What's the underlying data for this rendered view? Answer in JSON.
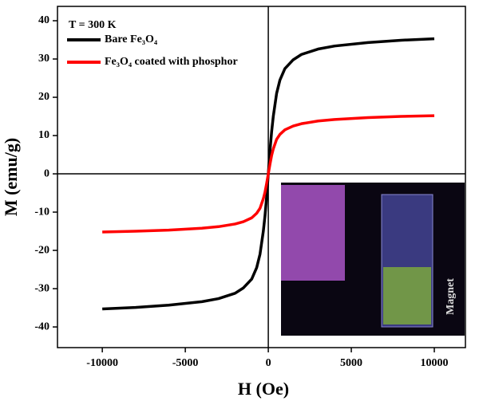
{
  "chart_data": {
    "type": "line",
    "x_label": "H (Oe)",
    "y_label": "M (emu/g)",
    "annotation": "T = 300 K",
    "inset_label": "Magnet",
    "x": [
      -10000,
      -8000,
      -6000,
      -4000,
      -3000,
      -2000,
      -1500,
      -1000,
      -700,
      -500,
      -300,
      -200,
      -100,
      0,
      100,
      200,
      300,
      500,
      700,
      1000,
      1500,
      2000,
      3000,
      4000,
      6000,
      8000,
      10000
    ],
    "series": [
      {
        "name": "Bare Fe₃O₄",
        "color": "#000000",
        "values": [
          -35.3,
          -34.9,
          -34.3,
          -33.4,
          -32.6,
          -31.2,
          -29.8,
          -27.5,
          -24.5,
          -21,
          -15,
          -11,
          -6,
          0,
          6,
          11,
          15,
          21,
          24.5,
          27.5,
          29.8,
          31.2,
          32.6,
          33.4,
          34.3,
          34.9,
          35.3
        ]
      },
      {
        "name": "Fe₃O₄ coated with phosphor",
        "color": "#ff0000",
        "values": [
          -15.2,
          -15.0,
          -14.7,
          -14.2,
          -13.8,
          -13.1,
          -12.5,
          -11.5,
          -10.3,
          -9,
          -6.5,
          -4.8,
          -2.5,
          0,
          2.5,
          4.8,
          6.5,
          9,
          10.3,
          11.5,
          12.5,
          13.1,
          13.8,
          14.2,
          14.7,
          15.0,
          15.2
        ]
      }
    ],
    "xlim": [
      -12700,
      11875
    ],
    "ylim": [
      -45.4,
      43.75
    ],
    "xticks": [
      -10000,
      -5000,
      0,
      5000,
      10000
    ],
    "yticks": [
      -40,
      -30,
      -20,
      -10,
      0,
      10,
      20,
      30,
      40
    ]
  }
}
